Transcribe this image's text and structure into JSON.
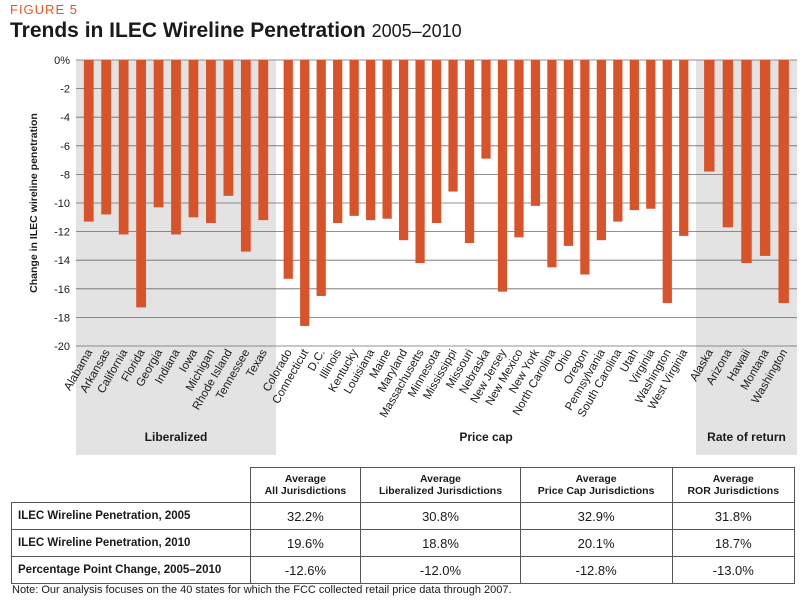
{
  "figure_label": "FIGURE 5",
  "title": "Trends in ILEC Wireline Penetration",
  "title_years": "2005–2010",
  "chart_data": {
    "type": "bar",
    "ylabel": "Change in ILEC wireline penetration",
    "ylim": [
      -20,
      0
    ],
    "yticks": [
      "0%",
      "-2",
      "-4",
      "-6",
      "-8",
      "-10",
      "-12",
      "-14",
      "-16",
      "-18",
      "-20"
    ],
    "bar_color": "#d9532a",
    "group_shade_color": "#e3e3e3",
    "grid": true,
    "groups": [
      {
        "name": "Liberalized",
        "shaded": true,
        "categories": [
          "Alabama",
          "Arkansas",
          "California",
          "Florida",
          "Georgia",
          "Indiana",
          "Iowa",
          "Michigan",
          "Rhode Island",
          "Tennessee",
          "Texas"
        ],
        "values": [
          -11.3,
          -10.8,
          -12.2,
          -17.3,
          -10.3,
          -12.2,
          -11.0,
          -11.4,
          -9.5,
          -13.4,
          -11.2
        ]
      },
      {
        "name": "Price cap",
        "shaded": false,
        "categories": [
          "Colorado",
          "Connecticut",
          "D.C.",
          "Illinois",
          "Kentucky",
          "Louisiana",
          "Maine",
          "Maryland",
          "Massachusetts",
          "Minnesota",
          "Mississippi",
          "Missouri",
          "Nebraska",
          "New Jersey",
          "New Mexico",
          "New York",
          "North Carolina",
          "Ohio",
          "Oregon",
          "Pennsylvania",
          "South Carolina",
          "Utah",
          "Virginia",
          "Washington",
          "West Virginia"
        ],
        "values": [
          -15.3,
          -18.6,
          -16.5,
          -11.4,
          -10.9,
          -11.2,
          -11.1,
          -12.6,
          -14.2,
          -11.4,
          -9.2,
          -12.8,
          -6.9,
          -16.2,
          -12.4,
          -10.2,
          -14.5,
          -13.0,
          -15.0,
          -12.6,
          -11.3,
          -10.5,
          -10.4,
          -17.0,
          -12.3
        ]
      },
      {
        "name": "Rate of return",
        "shaded": true,
        "categories": [
          "Alaska",
          "Arizona",
          "Hawaii",
          "Montana",
          "Washington"
        ],
        "values": [
          -7.8,
          -11.7,
          -14.2,
          -13.7,
          -17.0
        ]
      }
    ]
  },
  "table": {
    "headers": [
      "",
      [
        "Average",
        "All Jurisdictions"
      ],
      [
        "Average",
        "Liberalized Jurisdictions"
      ],
      [
        "Average",
        "Price Cap Jurisdictions"
      ],
      [
        "Average",
        "ROR Jurisdictions"
      ]
    ],
    "rows": [
      {
        "label": "ILEC Wireline Penetration, 2005",
        "values": [
          "32.2%",
          "30.8%",
          "32.9%",
          "31.8%"
        ]
      },
      {
        "label": "ILEC Wireline Penetration, 2010",
        "values": [
          "19.6%",
          "18.8%",
          "20.1%",
          "18.7%"
        ]
      },
      {
        "label": "Percentage Point Change, 2005–2010",
        "values": [
          "-12.6%",
          "-12.0%",
          "-12.8%",
          "-13.0%"
        ]
      }
    ]
  },
  "note": "Note: Our analysis focuses on the 40 states for which the FCC collected retail price data through 2007."
}
